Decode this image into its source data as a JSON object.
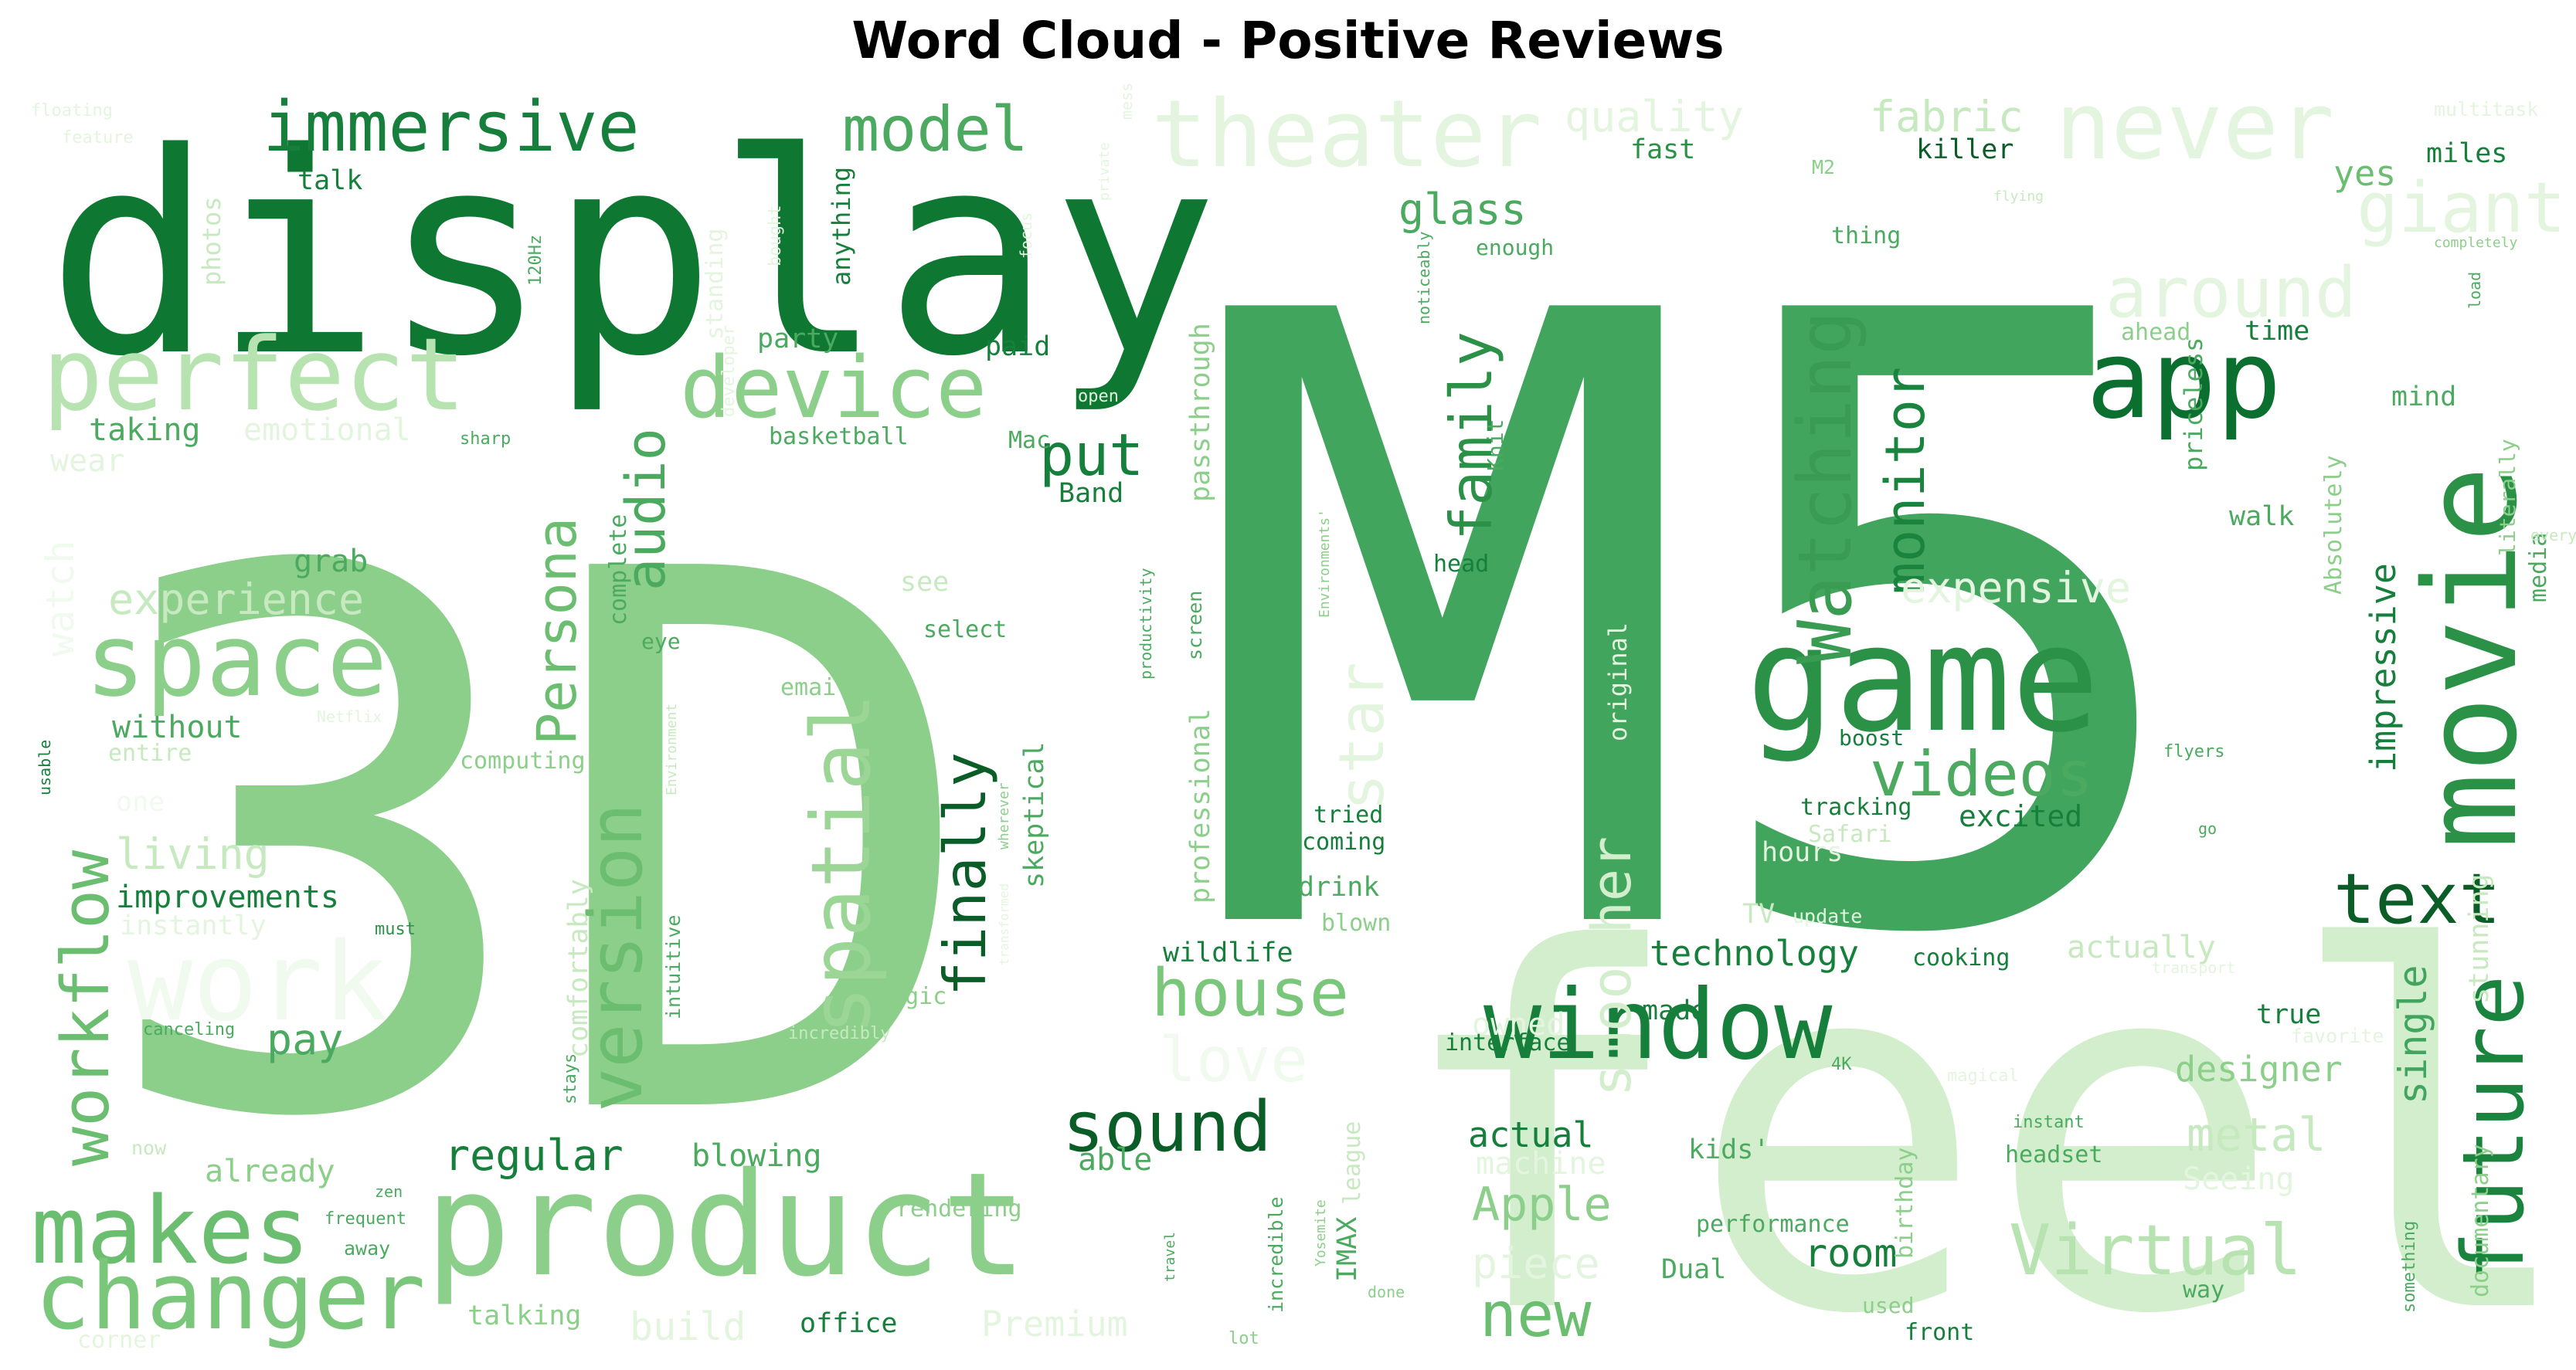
{
  "chart_data": {
    "type": "wordcloud",
    "title": "Word Cloud - Positive Reviews",
    "colormap": "Greens",
    "background": "#ffffff",
    "words": [
      {
        "text": "M5",
        "weight": 100,
        "color": "#41a55d"
      },
      {
        "text": "3D",
        "weight": 96,
        "color": "#8ccf8a"
      },
      {
        "text": "feel",
        "weight": 88,
        "color": "#d3eecd"
      },
      {
        "text": "display",
        "weight": 64,
        "color": "#0e7833"
      },
      {
        "text": "game",
        "weight": 40,
        "color": "#2a9147"
      },
      {
        "text": "product",
        "weight": 38,
        "color": "#8ccf8a"
      },
      {
        "text": "movie",
        "weight": 34,
        "color": "#2a9147"
      },
      {
        "text": "window",
        "weight": 26,
        "color": "#167f3b"
      },
      {
        "text": "perfect",
        "weight": 20,
        "color": "#b7e3b1"
      },
      {
        "text": "space",
        "weight": 20,
        "color": "#8ccf8a"
      },
      {
        "text": "makes",
        "weight": 18,
        "color": "#6bbe70"
      },
      {
        "text": "changer",
        "weight": 18,
        "color": "#7ac77b"
      },
      {
        "text": "device",
        "weight": 17,
        "color": "#8ccf8a"
      },
      {
        "text": "immersive",
        "weight": 14,
        "color": "#167f3b"
      },
      {
        "text": "theater",
        "weight": 18,
        "color": "#e4f5df"
      },
      {
        "text": "never",
        "weight": 18,
        "color": "#e4f5df"
      },
      {
        "text": "model",
        "weight": 12,
        "color": "#4caa60"
      },
      {
        "text": "app",
        "weight": 18,
        "color": "#0b6f30"
      },
      {
        "text": "future",
        "weight": 18,
        "color": "#1a843f"
      },
      {
        "text": "spatial",
        "weight": 20,
        "color": "#9cd697"
      },
      {
        "text": "version",
        "weight": 18,
        "color": "#6bbe70"
      },
      {
        "text": "Watching",
        "weight": 16,
        "color": "#3a9c52"
      },
      {
        "text": "workflow",
        "weight": 16,
        "color": "#6bbe70"
      },
      {
        "text": "work",
        "weight": 18,
        "color": "#f0faee"
      },
      {
        "text": "videos",
        "weight": 14,
        "color": "#4caa60"
      },
      {
        "text": "text",
        "weight": 14,
        "color": "#0b5d28"
      },
      {
        "text": "sound",
        "weight": 14,
        "color": "#0b5d28"
      },
      {
        "text": "house",
        "weight": 12,
        "color": "#7ac77b"
      },
      {
        "text": "Virtual",
        "weight": 14,
        "color": "#b7e3b1"
      },
      {
        "text": "giant",
        "weight": 12,
        "color": "#e4f5df"
      },
      {
        "text": "around",
        "weight": 12,
        "color": "#e4f5df"
      },
      {
        "text": "family",
        "weight": 12,
        "color": "#2a9147"
      },
      {
        "text": "monitor",
        "weight": 11,
        "color": "#1a843f"
      },
      {
        "text": "finally",
        "weight": 12,
        "color": "#0b5d28"
      },
      {
        "text": "Persona",
        "weight": 11,
        "color": "#6bbe70"
      },
      {
        "text": "audio",
        "weight": 11,
        "color": "#4caa60"
      },
      {
        "text": "put",
        "weight": 11,
        "color": "#167f3b"
      },
      {
        "text": "new",
        "weight": 12,
        "color": "#6bbe70"
      },
      {
        "text": "love",
        "weight": 12,
        "color": "#f0faee"
      },
      {
        "text": "star",
        "weight": 12,
        "color": "#e4f5df"
      },
      {
        "text": "smoother",
        "weight": 11,
        "color": "#d3eecd"
      },
      {
        "text": "expensive",
        "weight": 8,
        "color": "#e4f5df"
      },
      {
        "text": "experience",
        "weight": 8,
        "color": "#c7e9c0"
      },
      {
        "text": "living",
        "weight": 8,
        "color": "#c7e9c0"
      },
      {
        "text": "pay",
        "weight": 8,
        "color": "#4caa60"
      },
      {
        "text": "regular",
        "weight": 8,
        "color": "#167f3b"
      },
      {
        "text": "impressive",
        "weight": 8,
        "color": "#167f3b"
      },
      {
        "text": "single",
        "weight": 8,
        "color": "#41a55d"
      },
      {
        "text": "room",
        "weight": 8,
        "color": "#167f3b"
      },
      {
        "text": "metal",
        "weight": 9,
        "color": "#c7e9c0"
      },
      {
        "text": "designer",
        "weight": 7,
        "color": "#8ccf8a"
      },
      {
        "text": "technology",
        "weight": 7,
        "color": "#167f3b"
      },
      {
        "text": "Apple",
        "weight": 9,
        "color": "#8ccf8a"
      },
      {
        "text": "piece",
        "weight": 9,
        "color": "#e4f5df"
      },
      {
        "text": "actual",
        "weight": 7,
        "color": "#167f3b"
      },
      {
        "text": "machine",
        "weight": 7,
        "color": "#e4f5df"
      },
      {
        "text": "improvements",
        "weight": 6,
        "color": "#167f3b"
      },
      {
        "text": "without",
        "weight": 6,
        "color": "#4caa60"
      },
      {
        "text": "glass",
        "weight": 7,
        "color": "#4caa60"
      },
      {
        "text": "quality",
        "weight": 7,
        "color": "#e4f5df"
      },
      {
        "text": "fabric",
        "weight": 7,
        "color": "#c7e9c0"
      },
      {
        "text": "yes",
        "weight": 6,
        "color": "#6bbe70"
      },
      {
        "text": "miles",
        "weight": 5,
        "color": "#167f3b"
      },
      {
        "text": "killer",
        "weight": 5,
        "color": "#0b5d28"
      },
      {
        "text": "fast",
        "weight": 5,
        "color": "#2a9147"
      },
      {
        "text": "talk",
        "weight": 5,
        "color": "#167f3b"
      },
      {
        "text": "taking",
        "weight": 6,
        "color": "#4caa60"
      },
      {
        "text": "emotional",
        "weight": 6,
        "color": "#e4f5df"
      },
      {
        "text": "grab",
        "weight": 6,
        "color": "#4caa60"
      },
      {
        "text": "watch",
        "weight": 6,
        "color": "#f0faee"
      },
      {
        "text": "party",
        "weight": 5,
        "color": "#4caa60"
      },
      {
        "text": "paid",
        "weight": 5,
        "color": "#167f3b"
      },
      {
        "text": "basketball",
        "weight": 4,
        "color": "#4caa60"
      },
      {
        "text": "Mac",
        "weight": 4,
        "color": "#4caa60"
      },
      {
        "text": "Band",
        "weight": 5,
        "color": "#167f3b"
      },
      {
        "text": "passthrough",
        "weight": 5,
        "color": "#8ccf8a"
      },
      {
        "text": "see",
        "weight": 5,
        "color": "#c7e9c0"
      },
      {
        "text": "select",
        "weight": 4,
        "color": "#4caa60"
      },
      {
        "text": "email",
        "weight": 4,
        "color": "#8ccf8a"
      },
      {
        "text": "computing",
        "weight": 4,
        "color": "#8ccf8a"
      },
      {
        "text": "entire",
        "weight": 4,
        "color": "#c7e9c0"
      },
      {
        "text": "one",
        "weight": 5,
        "color": "#f0faee"
      },
      {
        "text": "instantly",
        "weight": 6,
        "color": "#e4f5df"
      },
      {
        "text": "must",
        "weight": 3,
        "color": "#2a9147"
      },
      {
        "text": "canceling",
        "weight": 3,
        "color": "#4caa60"
      },
      {
        "text": "magic",
        "weight": 4,
        "color": "#8ccf8a"
      },
      {
        "text": "incredibly",
        "weight": 3,
        "color": "#c7e9c0"
      },
      {
        "text": "wildlife",
        "weight": 5,
        "color": "#167f3b"
      },
      {
        "text": "owned",
        "weight": 5,
        "color": "#e4f5df"
      },
      {
        "text": "interface",
        "weight": 4,
        "color": "#167f3b"
      },
      {
        "text": "made",
        "weight": 5,
        "color": "#167f3b"
      },
      {
        "text": "drink",
        "weight": 5,
        "color": "#4caa60"
      },
      {
        "text": "blown",
        "weight": 4,
        "color": "#8ccf8a"
      },
      {
        "text": "cooking",
        "weight": 4,
        "color": "#167f3b"
      },
      {
        "text": "actually",
        "weight": 6,
        "color": "#c7e9c0"
      },
      {
        "text": "true",
        "weight": 5,
        "color": "#167f3b"
      },
      {
        "text": "4K",
        "weight": 3,
        "color": "#4caa60"
      },
      {
        "text": "magical",
        "weight": 3,
        "color": "#e4f5df"
      },
      {
        "text": "favorite",
        "weight": 4,
        "color": "#e4f5df"
      },
      {
        "text": "instant",
        "weight": 3,
        "color": "#4caa60"
      },
      {
        "text": "headset",
        "weight": 4,
        "color": "#4caa60"
      },
      {
        "text": "kids'",
        "weight": 5,
        "color": "#4caa60"
      },
      {
        "text": "Seeing",
        "weight": 6,
        "color": "#e4f5df"
      },
      {
        "text": "performance",
        "weight": 4,
        "color": "#4caa60"
      },
      {
        "text": "Dual",
        "weight": 5,
        "color": "#4caa60"
      },
      {
        "text": "way",
        "weight": 4,
        "color": "#4caa60"
      },
      {
        "text": "used",
        "weight": 4,
        "color": "#8ccf8a"
      },
      {
        "text": "front",
        "weight": 4,
        "color": "#167f3b"
      },
      {
        "text": "office",
        "weight": 5,
        "color": "#167f3b"
      },
      {
        "text": "Premium",
        "weight": 6,
        "color": "#e4f5df"
      },
      {
        "text": "build",
        "weight": 6,
        "color": "#e4f5df"
      },
      {
        "text": "talking",
        "weight": 5,
        "color": "#8ccf8a"
      },
      {
        "text": "blowing",
        "weight": 5,
        "color": "#4caa60"
      },
      {
        "text": "able",
        "weight": 5,
        "color": "#4caa60"
      },
      {
        "text": "rendering",
        "weight": 4,
        "color": "#8ccf8a"
      },
      {
        "text": "already",
        "weight": 5,
        "color": "#8ccf8a"
      },
      {
        "text": "now",
        "weight": 4,
        "color": "#c7e9c0"
      },
      {
        "text": "zen",
        "weight": 3,
        "color": "#4caa60"
      },
      {
        "text": "frequent",
        "weight": 3,
        "color": "#4caa60"
      },
      {
        "text": "away",
        "weight": 3,
        "color": "#4caa60"
      },
      {
        "text": "corner",
        "weight": 4,
        "color": "#e4f5df"
      },
      {
        "text": "travel",
        "weight": 3,
        "color": "#4caa60"
      },
      {
        "text": "lot",
        "weight": 3,
        "color": "#8ccf8a"
      },
      {
        "text": "done",
        "weight": 3,
        "color": "#8ccf8a"
      },
      {
        "text": "incredible",
        "weight": 3,
        "color": "#4caa60"
      },
      {
        "text": "IMAX",
        "weight": 5,
        "color": "#4caa60"
      },
      {
        "text": "league",
        "weight": 5,
        "color": "#c7e9c0"
      },
      {
        "text": "Yosemite",
        "weight": 3,
        "color": "#8ccf8a"
      },
      {
        "text": "birthday",
        "weight": 5,
        "color": "#8ccf8a"
      },
      {
        "text": "documentary",
        "weight": 5,
        "color": "#8ccf8a"
      },
      {
        "text": "something",
        "weight": 3,
        "color": "#4caa60"
      },
      {
        "text": "stunning",
        "weight": 5,
        "color": "#c7e9c0"
      },
      {
        "text": "media",
        "weight": 4,
        "color": "#4caa60"
      },
      {
        "text": "literally",
        "weight": 4,
        "color": "#8ccf8a"
      },
      {
        "text": "every",
        "weight": 3,
        "color": "#c7e9c0"
      },
      {
        "text": "mind",
        "weight": 5,
        "color": "#4caa60"
      },
      {
        "text": "Absolutely",
        "weight": 5,
        "color": "#8ccf8a"
      },
      {
        "text": "walk",
        "weight": 5,
        "color": "#4caa60"
      },
      {
        "text": "priceless",
        "weight": 5,
        "color": "#4caa60"
      },
      {
        "text": "ahead",
        "weight": 4,
        "color": "#8ccf8a"
      },
      {
        "text": "time",
        "weight": 5,
        "color": "#167f3b"
      },
      {
        "text": "Knit",
        "weight": 4,
        "color": "#4caa60"
      },
      {
        "text": "head",
        "weight": 4,
        "color": "#167f3b"
      },
      {
        "text": "tried",
        "weight": 4,
        "color": "#167f3b"
      },
      {
        "text": "coming",
        "weight": 4,
        "color": "#167f3b"
      },
      {
        "text": "boost",
        "weight": 4,
        "color": "#167f3b"
      },
      {
        "text": "tracking",
        "weight": 4,
        "color": "#167f3b"
      },
      {
        "text": "excited",
        "weight": 5,
        "color": "#167f3b"
      },
      {
        "text": "flyers",
        "weight": 3,
        "color": "#4caa60"
      },
      {
        "text": "Safari",
        "weight": 4,
        "color": "#c7e9c0"
      },
      {
        "text": "hours",
        "weight": 5,
        "color": "#e4f5df"
      },
      {
        "text": "update",
        "weight": 4,
        "color": "#e4f5df"
      },
      {
        "text": "transport",
        "weight": 3,
        "color": "#e4f5df"
      },
      {
        "text": "go",
        "weight": 3,
        "color": "#4caa60"
      },
      {
        "text": "TV",
        "weight": 5,
        "color": "#c7e9c0"
      },
      {
        "text": "load",
        "weight": 3,
        "color": "#4caa60"
      },
      {
        "text": "completely",
        "weight": 3,
        "color": "#8ccf8a"
      },
      {
        "text": "multitask",
        "weight": 3,
        "color": "#e4f5df"
      },
      {
        "text": "M2",
        "weight": 3,
        "color": "#8ccf8a"
      },
      {
        "text": "thing",
        "weight": 4,
        "color": "#4caa60"
      },
      {
        "text": "flying",
        "weight": 3,
        "color": "#c7e9c0"
      },
      {
        "text": "enough",
        "weight": 3,
        "color": "#4caa60"
      },
      {
        "text": "noticeably",
        "weight": 3,
        "color": "#4caa60"
      },
      {
        "text": "open",
        "weight": 3,
        "color": "#e4f5df"
      },
      {
        "text": "professional",
        "weight": 5,
        "color": "#8ccf8a"
      },
      {
        "text": "productivity",
        "weight": 3,
        "color": "#4caa60"
      },
      {
        "text": "Environments'",
        "weight": 3,
        "color": "#8ccf8a"
      },
      {
        "text": "screen",
        "weight": 4,
        "color": "#4caa60"
      },
      {
        "text": "original",
        "weight": 4,
        "color": "#e4f5df"
      },
      {
        "text": "comfortably",
        "weight": 5,
        "color": "#c7e9c0"
      },
      {
        "text": "complete",
        "weight": 4,
        "color": "#4caa60"
      },
      {
        "text": "eye",
        "weight": 4,
        "color": "#4caa60"
      },
      {
        "text": "stays",
        "weight": 3,
        "color": "#4caa60"
      },
      {
        "text": "intuitive",
        "weight": 3,
        "color": "#4caa60"
      },
      {
        "text": "Environment",
        "weight": 3,
        "color": "#c7e9c0"
      },
      {
        "text": "skeptical",
        "weight": 5,
        "color": "#4caa60"
      },
      {
        "text": "experienced",
        "weight": 5,
        "color": "#8ccf8a"
      },
      {
        "text": "wherever",
        "weight": 3,
        "color": "#8ccf8a"
      },
      {
        "text": "transformed",
        "weight": 3,
        "color": "#e4f5df"
      },
      {
        "text": "anything",
        "weight": 4,
        "color": "#167f3b"
      },
      {
        "text": "standing",
        "weight": 4,
        "color": "#e4f5df"
      },
      {
        "text": "120Hz",
        "weight": 3,
        "color": "#4caa60"
      },
      {
        "text": "photos",
        "weight": 5,
        "color": "#c7e9c0"
      },
      {
        "text": "sharp",
        "weight": 3,
        "color": "#4caa60"
      },
      {
        "text": "wear",
        "weight": 5,
        "color": "#e4f5df"
      },
      {
        "text": "usable",
        "weight": 3,
        "color": "#167f3b"
      },
      {
        "text": "feature",
        "weight": 3,
        "color": "#e4f5df"
      },
      {
        "text": "floating",
        "weight": 3,
        "color": "#e4f5df"
      },
      {
        "text": "focus",
        "weight": 3,
        "color": "#e4f5df"
      },
      {
        "text": "private",
        "weight": 3,
        "color": "#e4f5df"
      },
      {
        "text": "mess",
        "weight": 3,
        "color": "#e4f5df"
      },
      {
        "text": "developer",
        "weight": 3,
        "color": "#e4f5df"
      },
      {
        "text": "bought",
        "weight": 3,
        "color": "#e4f5df"
      },
      {
        "text": "Netflix",
        "weight": 3,
        "color": "#e4f5df"
      }
    ]
  }
}
